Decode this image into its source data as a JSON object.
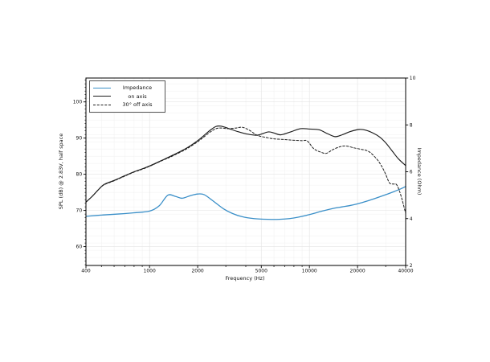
{
  "figure": {
    "background": "#ffffff",
    "accent_blue": "#3a8fc8",
    "curve_black": "#1c1c1c",
    "grid_major": "#e3e3e3",
    "grid_minor": "#f0f0f0"
  },
  "chart_data": {
    "type": "line",
    "xscale": "log",
    "grid": "on",
    "legend_position": "upper-left",
    "xlabel": "Frequency (Hz)",
    "ylabel_left": "SPL (dB) @ 2.83V, half space",
    "ylabel_right": "Impedance (Ohm)",
    "xlim": [
      400,
      40000
    ],
    "ylim_left": [
      54.8,
      106.6
    ],
    "ylim_right": [
      2,
      10
    ],
    "x_ticks": [
      400,
      1000,
      2000,
      5000,
      10000,
      20000,
      40000
    ],
    "x_tick_labels": [
      "400",
      "1000",
      "2000",
      "5000",
      "10000",
      "20000",
      "40000"
    ],
    "x_minor_ticks": [
      500,
      600,
      700,
      800,
      900,
      3000,
      4000,
      6000,
      7000,
      8000,
      9000,
      30000
    ],
    "y_ticks_left": [
      60,
      70,
      80,
      90,
      100
    ],
    "y_tick_labels_left": [
      "60",
      "70",
      "80",
      "90",
      "100"
    ],
    "y_minor_step_left": 1,
    "y_ticks_right": [
      2,
      4,
      6,
      8,
      10
    ],
    "y_tick_labels_right": [
      "2",
      "4",
      "6",
      "8",
      "10"
    ],
    "series": [
      {
        "name": "Impedance",
        "axis": "right",
        "style": "solid",
        "color": "#3a8fc8",
        "width": 1.3,
        "points": [
          [
            400,
            4.1
          ],
          [
            500,
            4.15
          ],
          [
            650,
            4.2
          ],
          [
            800,
            4.25
          ],
          [
            1000,
            4.32
          ],
          [
            1150,
            4.55
          ],
          [
            1300,
            5.0
          ],
          [
            1450,
            4.95
          ],
          [
            1600,
            4.87
          ],
          [
            1800,
            4.98
          ],
          [
            2000,
            5.05
          ],
          [
            2200,
            5.02
          ],
          [
            2500,
            4.75
          ],
          [
            2900,
            4.42
          ],
          [
            3300,
            4.22
          ],
          [
            3800,
            4.08
          ],
          [
            4500,
            4.0
          ],
          [
            5500,
            3.97
          ],
          [
            6500,
            3.97
          ],
          [
            7500,
            4.0
          ],
          [
            8500,
            4.06
          ],
          [
            10000,
            4.17
          ],
          [
            12000,
            4.32
          ],
          [
            14000,
            4.43
          ],
          [
            16000,
            4.5
          ],
          [
            18000,
            4.56
          ],
          [
            20000,
            4.63
          ],
          [
            23000,
            4.75
          ],
          [
            26000,
            4.87
          ],
          [
            30000,
            5.02
          ],
          [
            34000,
            5.16
          ],
          [
            37000,
            5.26
          ],
          [
            40000,
            5.37
          ]
        ]
      },
      {
        "name": "on axis",
        "axis": "left",
        "style": "solid",
        "color": "#1c1c1c",
        "width": 1.15,
        "points": [
          [
            400,
            72.3
          ],
          [
            440,
            74.0
          ],
          [
            480,
            75.8
          ],
          [
            520,
            77.2
          ],
          [
            600,
            78.3
          ],
          [
            700,
            79.6
          ],
          [
            800,
            80.7
          ],
          [
            900,
            81.5
          ],
          [
            1000,
            82.3
          ],
          [
            1200,
            83.9
          ],
          [
            1400,
            85.3
          ],
          [
            1700,
            87.2
          ],
          [
            2000,
            89.3
          ],
          [
            2200,
            90.8
          ],
          [
            2400,
            92.2
          ],
          [
            2600,
            93.2
          ],
          [
            2800,
            93.3
          ],
          [
            3100,
            92.7
          ],
          [
            3500,
            91.9
          ],
          [
            4000,
            91.2
          ],
          [
            4700,
            90.8
          ],
          [
            5500,
            91.7
          ],
          [
            6000,
            91.4
          ],
          [
            6600,
            90.9
          ],
          [
            7500,
            91.6
          ],
          [
            8800,
            92.6
          ],
          [
            10000,
            92.5
          ],
          [
            11500,
            92.3
          ],
          [
            13000,
            91.2
          ],
          [
            14500,
            90.4
          ],
          [
            16000,
            90.9
          ],
          [
            18000,
            91.8
          ],
          [
            20500,
            92.4
          ],
          [
            22500,
            92.2
          ],
          [
            25000,
            91.4
          ],
          [
            27500,
            90.3
          ],
          [
            30000,
            88.7
          ],
          [
            33000,
            86.4
          ],
          [
            36000,
            84.3
          ],
          [
            40000,
            82.4
          ]
        ]
      },
      {
        "name": "30° off axis",
        "axis": "left",
        "style": "dashed",
        "color": "#1c1c1c",
        "width": 1.0,
        "points": [
          [
            400,
            72.3
          ],
          [
            440,
            74.0
          ],
          [
            480,
            75.8
          ],
          [
            520,
            77.1
          ],
          [
            600,
            78.2
          ],
          [
            700,
            79.5
          ],
          [
            800,
            80.6
          ],
          [
            900,
            81.4
          ],
          [
            1000,
            82.2
          ],
          [
            1200,
            83.8
          ],
          [
            1400,
            85.1
          ],
          [
            1700,
            87.0
          ],
          [
            2000,
            89.0
          ],
          [
            2200,
            90.4
          ],
          [
            2400,
            91.7
          ],
          [
            2600,
            92.6
          ],
          [
            2800,
            92.8
          ],
          [
            3100,
            92.6
          ],
          [
            3500,
            92.8
          ],
          [
            3800,
            93.0
          ],
          [
            4200,
            92.2
          ],
          [
            4700,
            90.8
          ],
          [
            5200,
            90.3
          ],
          [
            6000,
            89.8
          ],
          [
            7000,
            89.6
          ],
          [
            8000,
            89.4
          ],
          [
            9000,
            89.3
          ],
          [
            9700,
            89.2
          ],
          [
            10700,
            87.0
          ],
          [
            12000,
            86.0
          ],
          [
            12800,
            85.8
          ],
          [
            14000,
            86.8
          ],
          [
            15500,
            87.6
          ],
          [
            17000,
            87.8
          ],
          [
            19000,
            87.3
          ],
          [
            20500,
            87.0
          ],
          [
            23500,
            86.3
          ],
          [
            26500,
            84.1
          ],
          [
            28500,
            82.0
          ],
          [
            30000,
            80.0
          ],
          [
            31700,
            77.6
          ],
          [
            33500,
            77.3
          ],
          [
            35000,
            77.2
          ],
          [
            36500,
            75.5
          ],
          [
            38000,
            73.0
          ],
          [
            40000,
            69.2
          ]
        ]
      }
    ]
  }
}
